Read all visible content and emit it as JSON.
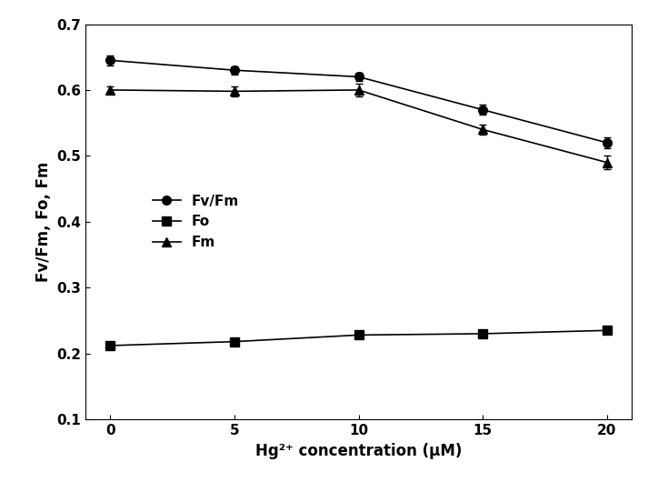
{
  "chart_data": {
    "type": "line",
    "x_label": "Hg²⁺ concentration (µM)",
    "y_label": "Fv/Fm, Fo, Fm",
    "x": [
      0,
      5,
      10,
      15,
      20
    ],
    "series": [
      {
        "name": "Fv/Fm",
        "color": "#000000",
        "marker": "circle",
        "line_style": "solid",
        "values": [
          0.645,
          0.63,
          0.62,
          0.57,
          0.52
        ],
        "errors": [
          0.008,
          0.006,
          0.006,
          0.008,
          0.008
        ]
      },
      {
        "name": "Fo",
        "color": "#000000",
        "marker": "square",
        "line_style": "solid",
        "values": [
          0.212,
          0.218,
          0.228,
          0.23,
          0.235
        ],
        "errors": [
          0.006,
          0.005,
          0.005,
          0.005,
          0.005
        ]
      },
      {
        "name": "Fm",
        "color": "#000000",
        "marker": "triangle",
        "line_style": "solid",
        "values": [
          0.6,
          0.598,
          0.6,
          0.54,
          0.49
        ],
        "errors": [
          0.005,
          0.008,
          0.01,
          0.008,
          0.01
        ]
      }
    ],
    "xlim": [
      -1,
      21
    ],
    "xticks": [
      0,
      5,
      10,
      15,
      20
    ],
    "ylim": [
      0.1,
      0.7
    ],
    "yticks": [
      0.1,
      0.2,
      0.3,
      0.4,
      0.5,
      0.6,
      0.7
    ],
    "legend": "center left",
    "grid": false
  }
}
